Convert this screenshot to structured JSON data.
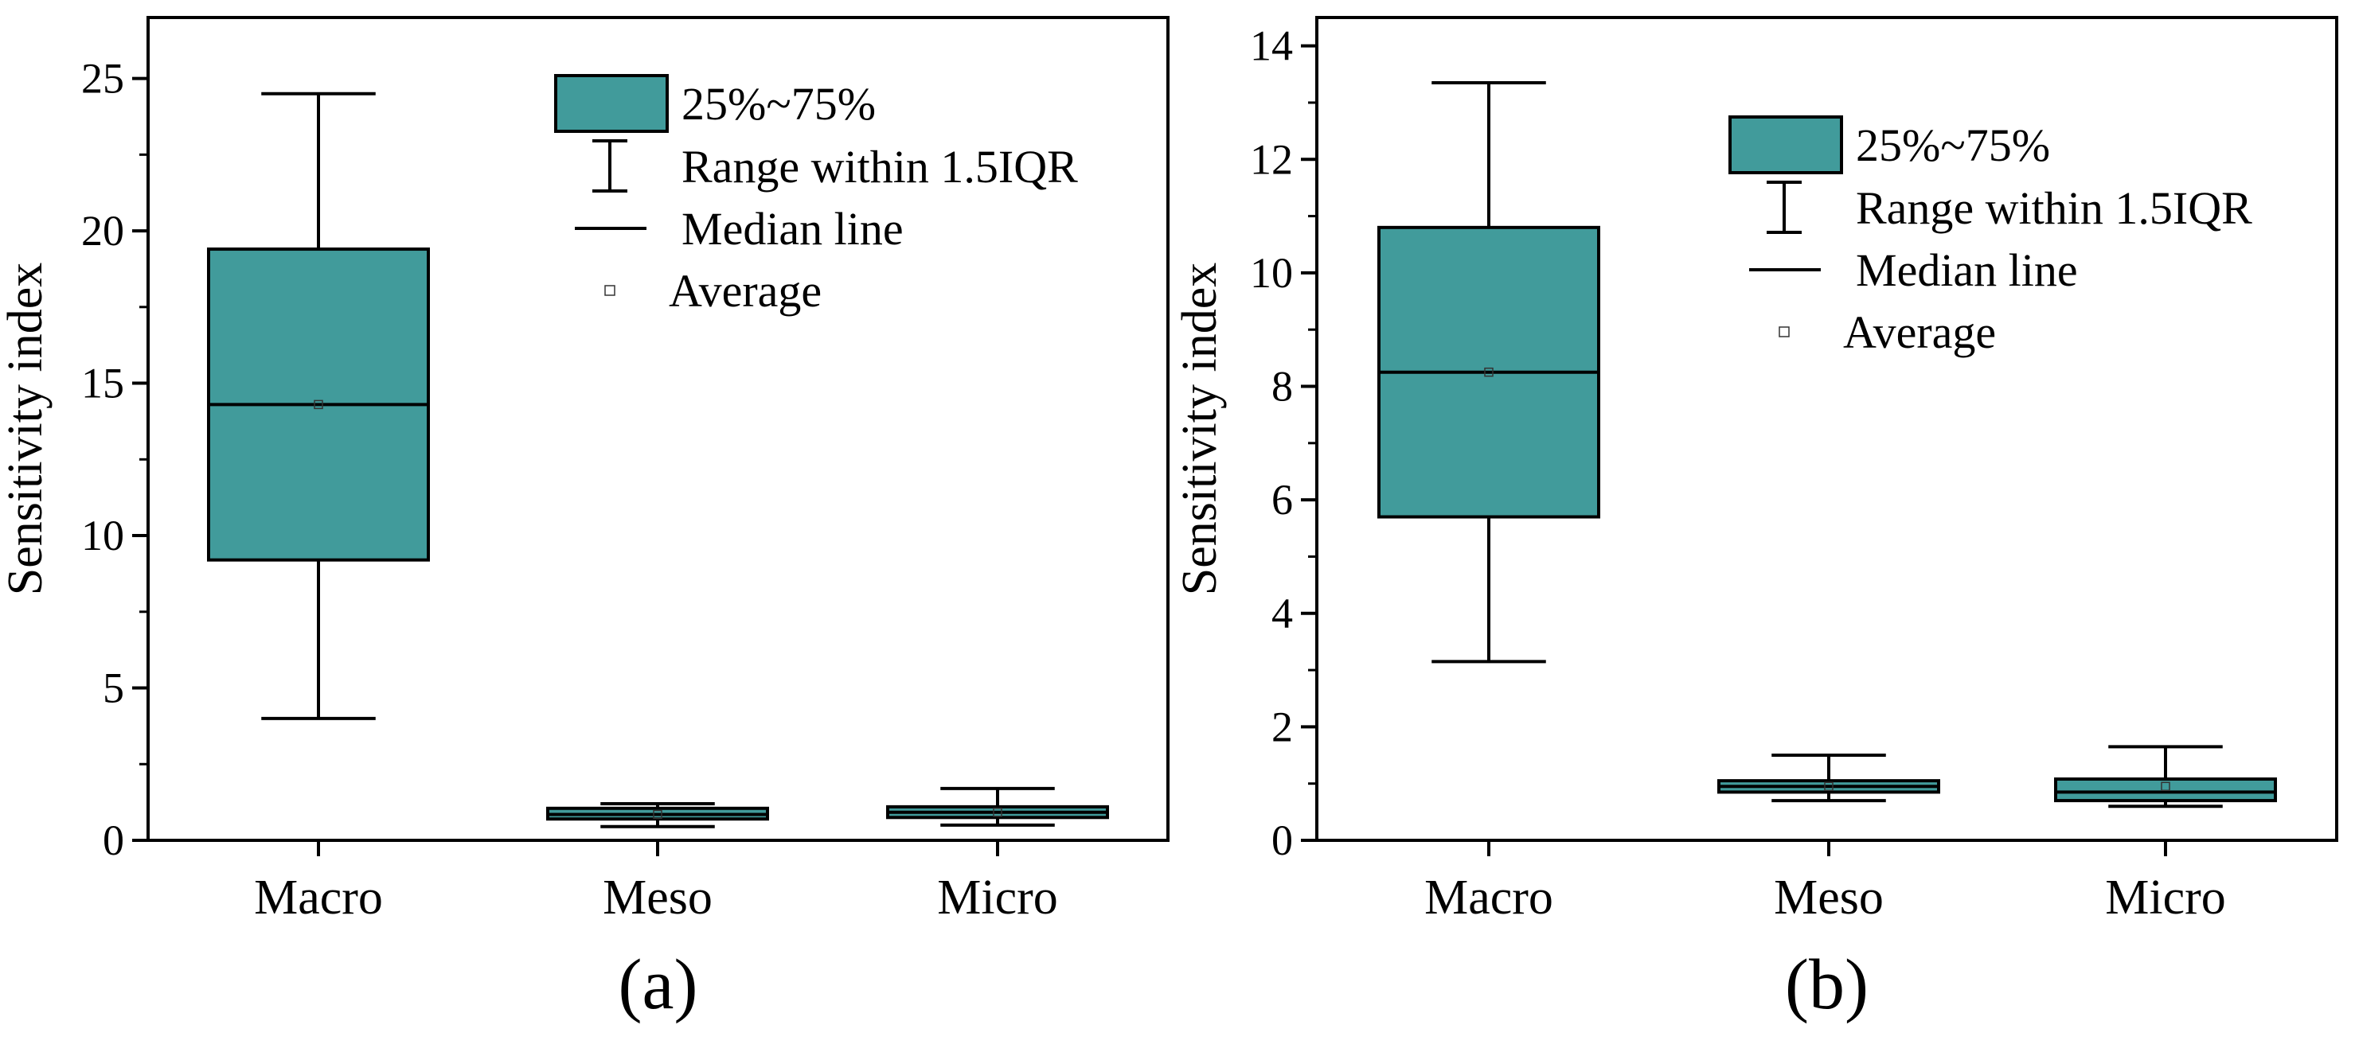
{
  "colors": {
    "box_fill": "#419B9B",
    "stroke": "#000000",
    "background": "#ffffff"
  },
  "legend": {
    "box": "25%~75%",
    "whisker": "Range within 1.5IQR",
    "median": "Median line",
    "mean": "Average"
  },
  "chart_data": [
    {
      "type": "box",
      "panel_label": "(a)",
      "ylabel": "Sensitivity index",
      "xlabel": "",
      "ylim": [
        0,
        27
      ],
      "yticks": [
        0,
        5,
        10,
        15,
        20,
        25
      ],
      "ytick_labels": [
        "0",
        "5",
        "10",
        "15",
        "20",
        "25"
      ],
      "legend_position": "top-right",
      "categories": [
        "Macro",
        "Meso",
        "Micro"
      ],
      "boxes": [
        {
          "category": "Macro",
          "whisker_low": 4.0,
          "q1": 9.2,
          "median": 14.3,
          "q3": 19.4,
          "whisker_high": 24.5,
          "mean": 14.3
        },
        {
          "category": "Meso",
          "whisker_low": 0.45,
          "q1": 0.7,
          "median": 0.85,
          "q3": 1.05,
          "whisker_high": 1.2,
          "mean": 0.85
        },
        {
          "category": "Micro",
          "whisker_low": 0.5,
          "q1": 0.75,
          "median": 0.92,
          "q3": 1.1,
          "whisker_high": 1.7,
          "mean": 0.92
        }
      ]
    },
    {
      "type": "box",
      "panel_label": "(b)",
      "ylabel": "Sensitivity index",
      "xlabel": "",
      "ylim": [
        0,
        14.5
      ],
      "yticks": [
        0,
        2,
        4,
        6,
        8,
        10,
        12,
        14
      ],
      "ytick_labels": [
        "0",
        "2",
        "4",
        "6",
        "8",
        "10",
        "12",
        "14"
      ],
      "legend_position": "top-right",
      "categories": [
        "Macro",
        "Meso",
        "Micro"
      ],
      "boxes": [
        {
          "category": "Macro",
          "whisker_low": 3.15,
          "q1": 5.7,
          "median": 8.25,
          "q3": 10.8,
          "whisker_high": 13.35,
          "mean": 8.25
        },
        {
          "category": "Meso",
          "whisker_low": 0.7,
          "q1": 0.85,
          "median": 0.95,
          "q3": 1.05,
          "whisker_high": 1.5,
          "mean": 0.95
        },
        {
          "category": "Micro",
          "whisker_low": 0.6,
          "q1": 0.7,
          "median": 0.85,
          "q3": 1.08,
          "whisker_high": 1.65,
          "mean": 0.95
        }
      ]
    }
  ]
}
